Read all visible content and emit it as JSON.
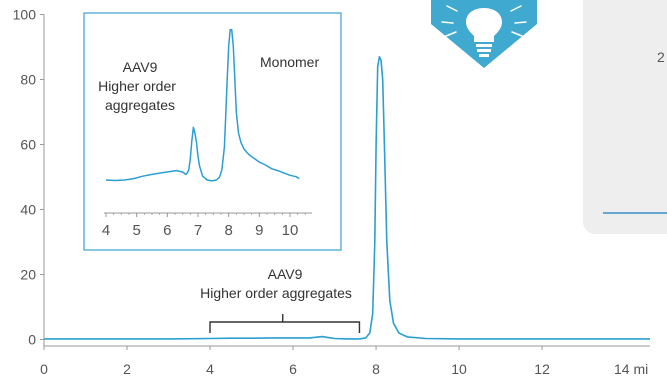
{
  "colors": {
    "trace": "#2b9fd0",
    "inset_border": "#4aa8d6",
    "axis": "#999999",
    "icon_bg": "#3fa9cf",
    "card_bg": "#eeeeee",
    "card_rule": "#3a8fc2"
  },
  "icons": {
    "tip": "lightbulb-icon"
  },
  "card": {
    "fragment_text": "2"
  },
  "chart_data": [
    {
      "type": "line",
      "title": "",
      "xlabel": "",
      "ylabel": "",
      "xlim": [
        0,
        14.6
      ],
      "ylim": [
        -2,
        102
      ],
      "x_unit_label": "14 mi",
      "x_ticks": [
        0,
        2,
        4,
        6,
        8,
        10,
        12
      ],
      "x_tick_labels": [
        "0",
        "2",
        "4",
        "6",
        "8",
        "10",
        "12"
      ],
      "y_ticks": [
        0,
        20,
        40,
        60,
        80,
        100
      ],
      "y_tick_labels": [
        "0",
        "20",
        "40",
        "60",
        "80",
        "100"
      ],
      "grid": false,
      "annotation": {
        "lines": [
          "AAV9",
          "Higher order aggregates"
        ],
        "bracket_range": [
          4.0,
          7.6
        ]
      },
      "series": [
        {
          "x": [
            0,
            1,
            2,
            3,
            4,
            4.5,
            5,
            5.5,
            6,
            6.4,
            6.7,
            6.85,
            7.0,
            7.3,
            7.6,
            7.75,
            7.85,
            7.92,
            7.97,
            8.0,
            8.04,
            8.08,
            8.12,
            8.16,
            8.2,
            8.26,
            8.33,
            8.42,
            8.55,
            8.75,
            9.2,
            10,
            11,
            12,
            13,
            14,
            14.6
          ],
          "y": [
            0.2,
            0.2,
            0.2,
            0.2,
            0.3,
            0.4,
            0.4,
            0.5,
            0.5,
            0.5,
            0.9,
            0.6,
            0.3,
            0.2,
            0.2,
            0.5,
            2,
            8,
            30,
            60,
            84,
            87,
            86,
            80,
            60,
            30,
            12,
            5,
            2,
            0.8,
            0.3,
            0.2,
            0.2,
            0.2,
            0.2,
            0.2,
            0.2
          ]
        }
      ]
    },
    {
      "type": "line",
      "title": "",
      "xlabel": "",
      "ylabel": "",
      "xlim": [
        3.9,
        10.6
      ],
      "x_ticks": [
        4,
        5,
        6,
        7,
        8,
        9,
        10
      ],
      "x_tick_labels": [
        "4",
        "5",
        "6",
        "7",
        "8",
        "9",
        "10"
      ],
      "annotations": {
        "aggregates": [
          "AAV9",
          "Higher order",
          "aggregates"
        ],
        "monomer": "Monomer"
      },
      "series": [
        {
          "x": [
            4.0,
            4.3,
            4.6,
            4.9,
            5.2,
            5.5,
            5.8,
            6.1,
            6.3,
            6.5,
            6.6,
            6.65,
            6.7,
            6.75,
            6.8,
            6.85,
            6.9,
            6.95,
            7.0,
            7.05,
            7.15,
            7.3,
            7.45,
            7.6,
            7.7,
            7.78,
            7.86,
            7.9,
            7.95,
            8.0,
            8.05,
            8.1,
            8.15,
            8.2,
            8.25,
            8.32,
            8.4,
            8.5,
            8.6,
            8.7,
            8.85,
            9.0,
            9.2,
            9.4,
            9.6,
            9.8,
            10.0,
            10.2,
            10.3
          ],
          "y": [
            0,
            -1,
            0,
            3,
            8,
            12,
            15,
            18,
            20,
            17,
            12,
            15,
            22,
            45,
            85,
            112,
            100,
            80,
            50,
            30,
            8,
            0,
            -2,
            0,
            6,
            22,
            70,
            130,
            210,
            285,
            320,
            320,
            285,
            215,
            145,
            100,
            80,
            66,
            58,
            52,
            45,
            38,
            32,
            24,
            20,
            15,
            10,
            7,
            3
          ]
        }
      ]
    }
  ]
}
